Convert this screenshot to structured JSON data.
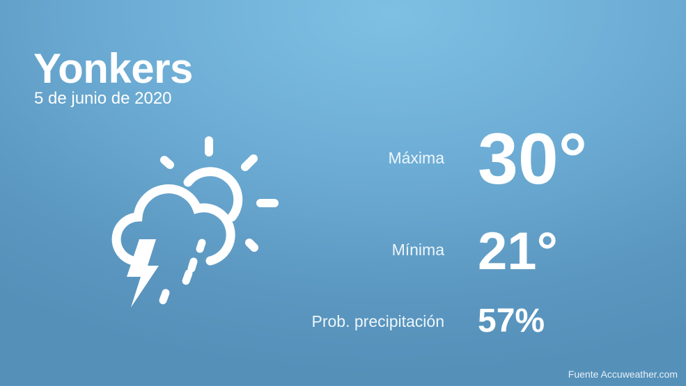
{
  "city": "Yonkers",
  "date": "5 de junio de 2020",
  "icon": "thunderstorm-partly-sunny-icon",
  "rows": [
    {
      "label": "Máxima",
      "value": "30°"
    },
    {
      "label": "Mínima",
      "value": "21°"
    },
    {
      "label": "Prob. precipitación",
      "value": "57%"
    }
  ],
  "source": "Fuente Accuweather.com",
  "colors": {
    "background_top": "#7ec0e4",
    "background_bottom": "#5590b9",
    "text": "#ffffff"
  }
}
